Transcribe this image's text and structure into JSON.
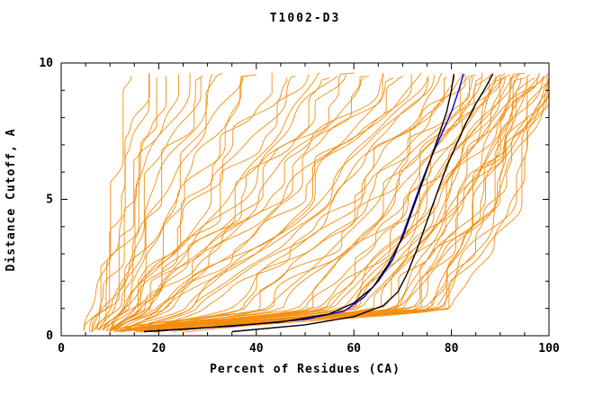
{
  "title": "T1002-D3",
  "chart_data": {
    "type": "line",
    "title": "T1002-D3",
    "xlabel": "Percent of Residues (CA)",
    "ylabel": "Distance Cutoff, A",
    "xlim": [
      0,
      100
    ],
    "ylim": [
      0,
      10
    ],
    "x_ticks": [
      0,
      20,
      40,
      60,
      80,
      100
    ],
    "x_minor_step": 5,
    "y_ticks": [
      0,
      5,
      10
    ],
    "y_minor_step": 1,
    "grid": false,
    "legend": "none",
    "colors": {
      "model": "#f28e0e",
      "highlight": "#0000dd",
      "reference": "#000000",
      "frame": "#000000",
      "background": "#ffffff"
    },
    "orange_control_format": "x_at_y0.15, x_at_y1, x_at_y5, x_at_ytop, seed",
    "orange_curves": [
      [
        5,
        7,
        10,
        14,
        1
      ],
      [
        5,
        7,
        11,
        16,
        2
      ],
      [
        6,
        8,
        12,
        17,
        3
      ],
      [
        6,
        8,
        13,
        19,
        4
      ],
      [
        6,
        9,
        14,
        21,
        5
      ],
      [
        7,
        9,
        15,
        23,
        6
      ],
      [
        7,
        10,
        16,
        25,
        7
      ],
      [
        7,
        10,
        17,
        27,
        8
      ],
      [
        8,
        11,
        18,
        29,
        9
      ],
      [
        8,
        11,
        19,
        31,
        10
      ],
      [
        8,
        12,
        21,
        33,
        11
      ],
      [
        9,
        12,
        22,
        35,
        12
      ],
      [
        9,
        13,
        24,
        38,
        13
      ],
      [
        9,
        13,
        25,
        40,
        14
      ],
      [
        10,
        14,
        27,
        43,
        15
      ],
      [
        10,
        15,
        28,
        45,
        16
      ],
      [
        10,
        15,
        30,
        48,
        17
      ],
      [
        11,
        16,
        32,
        50,
        18
      ],
      [
        11,
        17,
        34,
        53,
        19
      ],
      [
        11,
        18,
        36,
        55,
        20
      ],
      [
        9,
        14,
        35,
        56,
        21
      ],
      [
        9,
        15,
        37,
        58,
        22
      ],
      [
        10,
        16,
        38,
        60,
        23
      ],
      [
        10,
        17,
        40,
        62,
        24
      ],
      [
        10,
        18,
        42,
        63,
        25
      ],
      [
        11,
        19,
        43,
        65,
        26
      ],
      [
        11,
        20,
        45,
        66,
        27
      ],
      [
        12,
        21,
        46,
        68,
        28
      ],
      [
        12,
        22,
        48,
        70,
        29
      ],
      [
        12,
        23,
        50,
        71,
        30
      ],
      [
        13,
        24,
        51,
        72,
        31
      ],
      [
        13,
        25,
        53,
        74,
        32
      ],
      [
        14,
        26,
        54,
        75,
        33
      ],
      [
        14,
        28,
        56,
        76,
        34
      ],
      [
        15,
        30,
        57,
        78,
        35
      ],
      [
        15,
        32,
        59,
        79,
        36
      ],
      [
        16,
        34,
        60,
        80,
        37
      ],
      [
        16,
        36,
        62,
        81,
        38
      ],
      [
        17,
        38,
        63,
        82,
        39
      ],
      [
        17,
        40,
        65,
        83,
        40
      ],
      [
        10,
        42,
        66,
        84,
        41
      ],
      [
        10,
        44,
        67,
        85,
        42
      ],
      [
        11,
        46,
        68,
        86,
        43
      ],
      [
        11,
        48,
        69,
        86,
        44
      ],
      [
        12,
        50,
        70,
        87,
        45
      ],
      [
        12,
        52,
        71,
        88,
        46
      ],
      [
        12,
        54,
        72,
        88,
        47
      ],
      [
        13,
        55,
        73,
        89,
        48
      ],
      [
        13,
        56,
        74,
        90,
        49
      ],
      [
        13,
        57,
        75,
        90,
        50
      ],
      [
        14,
        58,
        76,
        91,
        51
      ],
      [
        14,
        59,
        76,
        91,
        52
      ],
      [
        14,
        60,
        77,
        92,
        53
      ],
      [
        15,
        61,
        78,
        92,
        54
      ],
      [
        15,
        62,
        78,
        93,
        55
      ],
      [
        15,
        63,
        79,
        93,
        56
      ],
      [
        16,
        64,
        80,
        94,
        57
      ],
      [
        16,
        65,
        80,
        94,
        58
      ],
      [
        16,
        66,
        81,
        95,
        59
      ],
      [
        17,
        67,
        82,
        95,
        60
      ],
      [
        17,
        68,
        82,
        96,
        61
      ],
      [
        17,
        69,
        83,
        96,
        62
      ],
      [
        18,
        70,
        84,
        97,
        63
      ],
      [
        18,
        71,
        84,
        97,
        64
      ],
      [
        18,
        72,
        85,
        98,
        65
      ],
      [
        19,
        72,
        86,
        98,
        66
      ],
      [
        19,
        73,
        86,
        98,
        67
      ],
      [
        20,
        74,
        87,
        99,
        68
      ],
      [
        20,
        75,
        88,
        99,
        69
      ],
      [
        21,
        76,
        88,
        99,
        70
      ],
      [
        22,
        77,
        89,
        100,
        71
      ],
      [
        23,
        78,
        90,
        100,
        72
      ],
      [
        24,
        79,
        91,
        100,
        73
      ],
      [
        25,
        80,
        92,
        100,
        74
      ],
      [
        26,
        81,
        93,
        100,
        75
      ]
    ],
    "black_curves": [
      [
        [
          17,
          0.15
        ],
        [
          30,
          0.3
        ],
        [
          45,
          0.5
        ],
        [
          55,
          0.8
        ],
        [
          60,
          1.2
        ],
        [
          64,
          1.8
        ],
        [
          67,
          2.6
        ],
        [
          70,
          3.6
        ],
        [
          72,
          4.6
        ],
        [
          74,
          5.6
        ],
        [
          76,
          6.6
        ],
        [
          77.5,
          7.4
        ],
        [
          79,
          8.2
        ],
        [
          80,
          9.0
        ],
        [
          80.5,
          9.6
        ]
      ],
      [
        [
          35,
          0.15
        ],
        [
          50,
          0.4
        ],
        [
          60,
          0.7
        ],
        [
          66,
          1.1
        ],
        [
          69,
          1.6
        ],
        [
          71,
          2.3
        ],
        [
          73,
          3.2
        ],
        [
          75,
          4.2
        ],
        [
          77,
          5.2
        ],
        [
          79,
          6.2
        ],
        [
          81,
          7.0
        ],
        [
          83,
          7.8
        ],
        [
          85,
          8.5
        ],
        [
          87,
          9.1
        ],
        [
          88.5,
          9.6
        ]
      ]
    ],
    "blue_curve": [
      [
        17,
        0.15
      ],
      [
        35,
        0.35
      ],
      [
        50,
        0.6
      ],
      [
        58,
        0.9
      ],
      [
        62,
        1.4
      ],
      [
        65,
        2.0
      ],
      [
        68,
        2.8
      ],
      [
        70,
        3.7
      ],
      [
        72,
        4.7
      ],
      [
        74,
        5.7
      ],
      [
        76,
        6.6
      ],
      [
        78,
        7.4
      ],
      [
        80,
        8.2
      ],
      [
        81.5,
        9.0
      ],
      [
        82.5,
        9.6
      ]
    ]
  }
}
